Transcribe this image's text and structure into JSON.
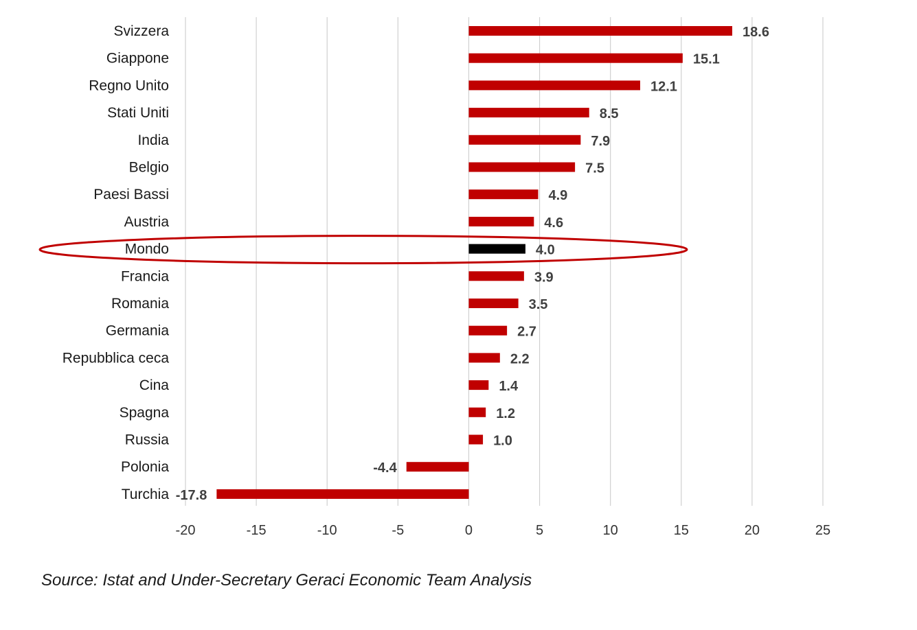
{
  "chart_data": {
    "type": "bar",
    "orientation": "horizontal",
    "categories": [
      "Svizzera",
      "Giappone",
      "Regno Unito",
      "Stati Uniti",
      "India",
      "Belgio",
      "Paesi Bassi",
      "Austria",
      "Mondo",
      "Francia",
      "Romania",
      "Germania",
      "Repubblica ceca",
      "Cina",
      "Spagna",
      "Russia",
      "Polonia",
      "Turchia"
    ],
    "values": [
      18.6,
      15.1,
      12.1,
      8.5,
      7.9,
      7.5,
      4.9,
      4.6,
      4.0,
      3.9,
      3.5,
      2.7,
      2.2,
      1.4,
      1.2,
      1.0,
      -4.4,
      -17.8
    ],
    "value_labels": [
      "18.6",
      "15.1",
      "12.1",
      "8.5",
      "7.9",
      "7.5",
      "4.9",
      "4.6",
      "4.0",
      "3.9",
      "3.5",
      "2.7",
      "2.2",
      "1.4",
      "1.2",
      "1.0",
      "-4.4",
      "-17.8"
    ],
    "highlight_category": "Mondo",
    "xlim": [
      -20,
      25
    ],
    "xticks": [
      -20,
      -15,
      -10,
      -5,
      0,
      5,
      10,
      15,
      20,
      25
    ],
    "grid": "vertical",
    "colors": {
      "bar": "#c00000",
      "highlight_bar": "#000000",
      "highlight_ring": "#c00000",
      "grid": "#d0d0d0"
    }
  },
  "source": "Source: Istat and Under-Secretary Geraci Economic Team Analysis"
}
